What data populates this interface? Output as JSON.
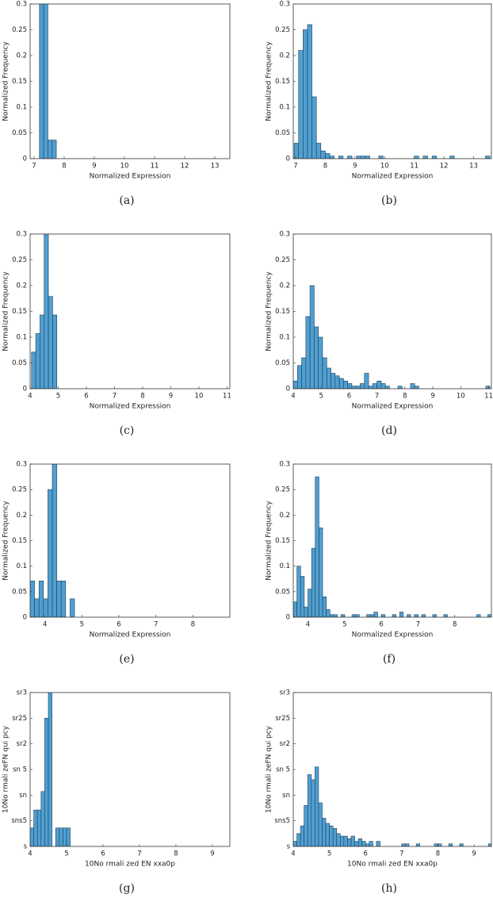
{
  "chart_data": [
    {
      "type": "histogram",
      "caption": "(a)",
      "xlabel": "Normalized Expression",
      "ylabel": "Normalized Frequency",
      "color": "#509fd1",
      "edgecolor": "#1d3f57",
      "bins": [
        7.18,
        7.32,
        7.46,
        7.6,
        7.74
      ],
      "values": [
        0.32,
        0.32,
        0.036,
        0.036
      ],
      "xlim": [
        6.87,
        13.5
      ],
      "ylim": [
        0,
        0.3
      ],
      "xticks": [
        7,
        8,
        9,
        10,
        11,
        12,
        13
      ],
      "yticks": [
        0,
        0.05,
        0.1,
        0.15,
        0.2,
        0.25,
        0.3
      ]
    },
    {
      "type": "histogram",
      "caption": "(b)",
      "xlabel": "Normalized Expression",
      "ylabel": "Normalized Frequency",
      "color": "#509fd1",
      "edgecolor": "#1d3f57",
      "bins": [
        6.95,
        7.1,
        7.25,
        7.4,
        7.55,
        7.7,
        7.85,
        8,
        8.15,
        8.3,
        8.45,
        8.6,
        8.75,
        8.9,
        9.05,
        9.2,
        9.35,
        9.5,
        9.65,
        9.8,
        9.95,
        10.1,
        10.25,
        10.4,
        10.55,
        10.7,
        10.85,
        11,
        11.15,
        11.3,
        11.45,
        11.6,
        11.75,
        11.9,
        12.05,
        12.2,
        12.35,
        12.5,
        12.65,
        12.8,
        12.95,
        13.1,
        13.25,
        13.4,
        13.55
      ],
      "values": [
        0.03,
        0.21,
        0.25,
        0.26,
        0.12,
        0.03,
        0.015,
        0.01,
        0.005,
        0,
        0.005,
        0,
        0.005,
        0,
        0.005,
        0.005,
        0.005,
        0,
        0,
        0.005,
        0,
        0,
        0,
        0,
        0,
        0,
        0,
        0.005,
        0,
        0.005,
        0,
        0.005,
        0,
        0,
        0,
        0.005,
        0,
        0,
        0,
        0,
        0,
        0,
        0,
        0.005
      ],
      "xlim": [
        6.92,
        13.6
      ],
      "ylim": [
        0,
        0.3
      ],
      "xticks": [
        7,
        8,
        9,
        10,
        11,
        12,
        13
      ],
      "yticks": [
        0,
        0.05,
        0.1,
        0.15,
        0.2,
        0.25,
        0.3
      ]
    },
    {
      "type": "histogram",
      "caption": "(c)",
      "xlabel": "Normalized Expression",
      "ylabel": "Normalized Frequency",
      "color": "#509fd1",
      "edgecolor": "#1d3f57",
      "bins": [
        4.05,
        4.2,
        4.35,
        4.5,
        4.65,
        4.8,
        4.95
      ],
      "values": [
        0.071,
        0.107,
        0.143,
        0.32,
        0.179,
        0.143
      ],
      "xlim": [
        4,
        11.1
      ],
      "ylim": [
        0,
        0.3
      ],
      "xticks": [
        4,
        5,
        6,
        7,
        8,
        9,
        10,
        11
      ],
      "yticks": [
        0,
        0.05,
        0.1,
        0.15,
        0.2,
        0.25,
        0.3
      ]
    },
    {
      "type": "histogram",
      "caption": "(d)",
      "xlabel": "Normalized Expression",
      "ylabel": "Normalized Frequency",
      "color": "#509fd1",
      "edgecolor": "#1d3f57",
      "bins": [
        4,
        4.15,
        4.3,
        4.45,
        4.6,
        4.75,
        4.9,
        5.05,
        5.2,
        5.35,
        5.5,
        5.65,
        5.8,
        5.95,
        6.1,
        6.25,
        6.4,
        6.55,
        6.7,
        6.85,
        7,
        7.15,
        7.3,
        7.45,
        7.6,
        7.75,
        7.9,
        8.05,
        8.2,
        8.35,
        8.5,
        8.65,
        8.8,
        8.95,
        9.1,
        9.25,
        9.4,
        9.55,
        9.7,
        9.85,
        10,
        10.15,
        10.3,
        10.45,
        10.6,
        10.75,
        10.9,
        11.05
      ],
      "values": [
        0.015,
        0.045,
        0.06,
        0.14,
        0.2,
        0.12,
        0.1,
        0.06,
        0.04,
        0.03,
        0.025,
        0.02,
        0.015,
        0.01,
        0.005,
        0.005,
        0.01,
        0.03,
        0.005,
        0.01,
        0.015,
        0.01,
        0.005,
        0,
        0,
        0.005,
        0,
        0,
        0.01,
        0.005,
        0,
        0,
        0,
        0,
        0,
        0,
        0,
        0,
        0,
        0,
        0,
        0,
        0,
        0,
        0,
        0,
        0.005
      ],
      "xlim": [
        4,
        11.1
      ],
      "ylim": [
        0,
        0.3
      ],
      "xticks": [
        4,
        5,
        6,
        7,
        8,
        9,
        10,
        11
      ],
      "yticks": [
        0,
        0.05,
        0.1,
        0.15,
        0.2,
        0.25,
        0.3
      ]
    },
    {
      "type": "histogram",
      "caption": "(e)",
      "xlabel": "Normalized Expression",
      "ylabel": "Normalized Frequency",
      "color": "#509fd1",
      "edgecolor": "#1d3f57",
      "bins": [
        3.6,
        3.72,
        3.84,
        3.96,
        4.08,
        4.2,
        4.32,
        4.44,
        4.56,
        4.68,
        4.8
      ],
      "values": [
        0.071,
        0.036,
        0.071,
        0.036,
        0.25,
        0.32,
        0.071,
        0.071,
        0,
        0.036
      ],
      "xlim": [
        3.6,
        9
      ],
      "ylim": [
        0,
        0.3
      ],
      "xticks": [
        4,
        5,
        6,
        7,
        8
      ],
      "yticks": [
        0,
        0.05,
        0.1,
        0.15,
        0.2,
        0.25,
        0.3
      ]
    },
    {
      "type": "histogram",
      "caption": "(f)",
      "xlabel": "Normalized Expression",
      "ylabel": "Normalized Frequency",
      "color": "#509fd1",
      "edgecolor": "#1d3f57",
      "bins": [
        3.6,
        3.7,
        3.8,
        3.9,
        4,
        4.1,
        4.2,
        4.3,
        4.4,
        4.5,
        4.6,
        4.7,
        4.8,
        4.9,
        5,
        5.1,
        5.2,
        5.3,
        5.4,
        5.5,
        5.6,
        5.7,
        5.8,
        5.9,
        6,
        6.1,
        6.2,
        6.3,
        6.4,
        6.5,
        6.6,
        6.7,
        6.8,
        6.9,
        7,
        7.1,
        7.2,
        7.3,
        7.4,
        7.5,
        7.6,
        7.7,
        7.8,
        7.9,
        8,
        8.1,
        8.2,
        8.3,
        8.4,
        8.5,
        8.6,
        8.7,
        8.8,
        8.9,
        9
      ],
      "values": [
        0.03,
        0.1,
        0.08,
        0.02,
        0.055,
        0.135,
        0.275,
        0.175,
        0.04,
        0.015,
        0.005,
        0.005,
        0,
        0.005,
        0,
        0,
        0.005,
        0.005,
        0,
        0,
        0.005,
        0.005,
        0.01,
        0,
        0.005,
        0,
        0,
        0.005,
        0,
        0.01,
        0,
        0.005,
        0,
        0.005,
        0,
        0.005,
        0,
        0,
        0.005,
        0,
        0,
        0.005,
        0,
        0,
        0,
        0,
        0,
        0,
        0,
        0,
        0.005,
        0,
        0,
        0.005
      ],
      "xlim": [
        3.6,
        9
      ],
      "ylim": [
        0,
        0.3
      ],
      "xticks": [
        4,
        5,
        6,
        7,
        8
      ],
      "yticks": [
        0,
        0.05,
        0.1,
        0.15,
        0.2,
        0.25,
        0.3
      ]
    },
    {
      "type": "histogram",
      "caption": "(g)",
      "xlabel": "10No rmali zed EN xxa0p",
      "ylabel": "10No rmali zeFN qui pcy",
      "color": "#509fd1",
      "edgecolor": "#1d3f57",
      "bins": [
        4,
        4.1,
        4.2,
        4.3,
        4.4,
        4.5,
        4.6,
        4.7,
        4.8,
        4.9,
        5,
        5.1
      ],
      "values": [
        0.036,
        0.071,
        0.071,
        0.107,
        0.25,
        0.32,
        0,
        0.036,
        0.036,
        0.036,
        0.036
      ],
      "xlim": [
        4,
        9.48
      ],
      "ylim": [
        0,
        0.3
      ],
      "xticks": [
        4,
        5,
        6,
        7,
        8,
        9
      ],
      "yticks": [
        {
          "value": 0,
          "label": "s"
        },
        {
          "value": 0.05,
          "label": "sns5"
        },
        {
          "value": 0.1,
          "label": "sn"
        },
        {
          "value": 0.15,
          "label": "sn 5"
        },
        {
          "value": 0.2,
          "label": "sr2"
        },
        {
          "value": 0.25,
          "label": "sr25"
        },
        {
          "value": 0.3,
          "label": "sr3"
        }
      ]
    },
    {
      "type": "histogram",
      "caption": "(h)",
      "xlabel": "10No rmali zed EN xxa0p",
      "ylabel": "10No rmali zeFN qui pcy",
      "color": "#509fd1",
      "edgecolor": "#1d3f57",
      "bins": [
        4,
        4.1,
        4.2,
        4.3,
        4.4,
        4.5,
        4.6,
        4.7,
        4.8,
        4.9,
        5,
        5.1,
        5.2,
        5.3,
        5.4,
        5.5,
        5.6,
        5.7,
        5.8,
        5.9,
        6,
        6.1,
        6.2,
        6.3,
        6.4,
        6.5,
        6.6,
        6.7,
        6.8,
        6.9,
        7,
        7.1,
        7.2,
        7.3,
        7.4,
        7.5,
        7.6,
        7.7,
        7.8,
        7.9,
        8,
        8.1,
        8.2,
        8.3,
        8.4,
        8.5,
        8.6,
        8.7,
        8.8,
        8.9,
        9,
        9.1,
        9.2,
        9.3,
        9.4,
        9.5
      ],
      "values": [
        0.01,
        0.025,
        0.04,
        0.08,
        0.14,
        0.13,
        0.155,
        0.085,
        0.055,
        0.045,
        0.04,
        0.035,
        0.025,
        0.02,
        0.02,
        0.015,
        0.02,
        0.01,
        0.015,
        0.01,
        0.005,
        0.01,
        0,
        0.01,
        0,
        0,
        0,
        0,
        0,
        0,
        0.005,
        0.005,
        0,
        0,
        0.005,
        0,
        0,
        0,
        0,
        0.005,
        0.005,
        0,
        0,
        0.005,
        0,
        0,
        0.005,
        0,
        0,
        0,
        0,
        0,
        0,
        0,
        0.005
      ],
      "xlim": [
        4,
        9.48
      ],
      "ylim": [
        0,
        0.3
      ],
      "xticks": [
        4,
        5,
        6,
        7,
        8,
        9
      ],
      "yticks": [
        {
          "value": 0,
          "label": "s"
        },
        {
          "value": 0.05,
          "label": "sns5"
        },
        {
          "value": 0.1,
          "label": "sn"
        },
        {
          "value": 0.15,
          "label": "sn 5"
        },
        {
          "value": 0.2,
          "label": "sr2"
        },
        {
          "value": 0.25,
          "label": "sr25"
        },
        {
          "value": 0.3,
          "label": "sr3"
        }
      ]
    }
  ]
}
